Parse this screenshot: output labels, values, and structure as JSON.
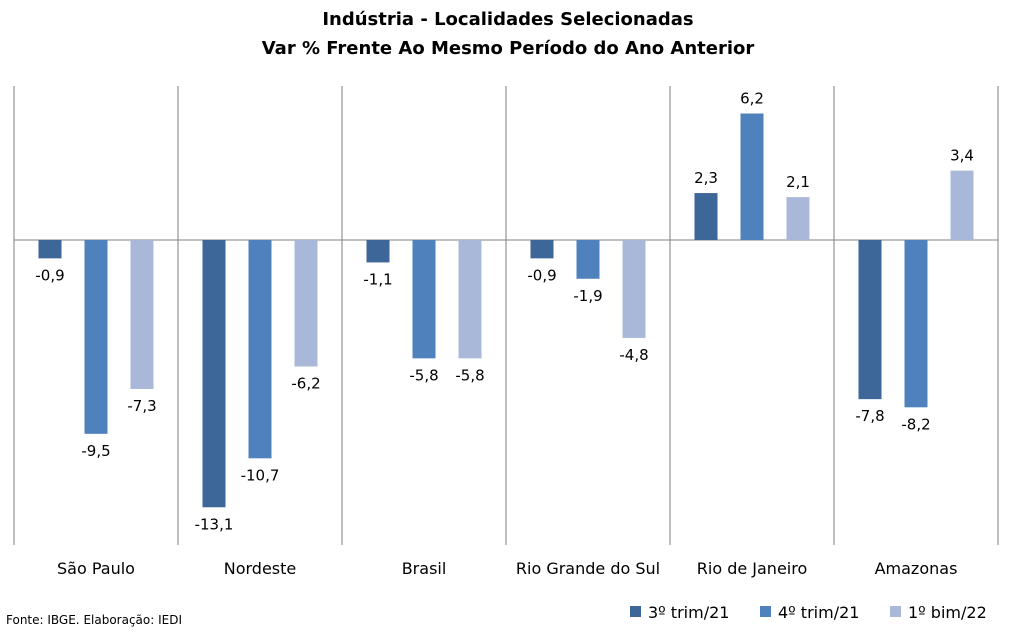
{
  "chart_data": {
    "type": "bar",
    "title": "Indústria - Localidades Selecionadas",
    "subtitle": "Var % Frente Ao Mesmo Período do Ano Anterior",
    "categories": [
      "São Paulo",
      "Nordeste",
      "Brasil",
      "Rio Grande do Sul",
      "Rio de Janeiro",
      "Amazonas"
    ],
    "series": [
      {
        "name": "3º trim/21",
        "color": "#3D6699",
        "values": [
          -0.9,
          -13.1,
          -1.1,
          -0.9,
          2.3,
          -7.8
        ],
        "labels": [
          "-0,9",
          "-13,1",
          "-1,1",
          "-0,9",
          "2,3",
          "-7,8"
        ]
      },
      {
        "name": "4º trim/21",
        "color": "#4F81BD",
        "values": [
          -9.5,
          -10.7,
          -5.8,
          -1.9,
          6.2,
          -8.2
        ],
        "labels": [
          "-9,5",
          "-10,7",
          "-5,8",
          "-1,9",
          "6,2",
          "-8,2"
        ]
      },
      {
        "name": "1º bim/22",
        "color": "#A9B8D9",
        "values": [
          -7.3,
          -6.2,
          -5.8,
          -4.8,
          2.1,
          3.4
        ],
        "labels": [
          "-7,3",
          "-6,2",
          "-5,8",
          "-4,8",
          "2,1",
          "3,4"
        ]
      }
    ],
    "ylim": [
      -14.5,
      7.5
    ],
    "grid": false,
    "legend": "bottom-right"
  },
  "source": "Fonte: IBGE. Elaboração: IEDI"
}
